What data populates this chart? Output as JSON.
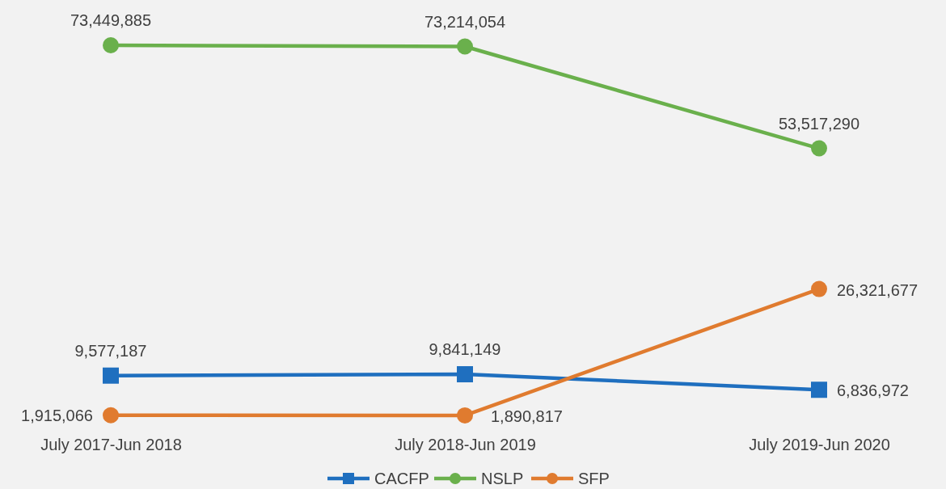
{
  "chart_data": {
    "type": "line",
    "categories": [
      "July 2017-Jun 2018",
      "July 2018-Jun 2019",
      "July 2019-Jun 2020"
    ],
    "series": [
      {
        "name": "CACFP",
        "color": "#1f6fbf",
        "marker": "square",
        "values": [
          9577187,
          9841149,
          6836972
        ],
        "value_labels": [
          "9,577,187",
          "9,841,149",
          "6,836,972"
        ]
      },
      {
        "name": "NSLP",
        "color": "#6ab04c",
        "marker": "circle",
        "values": [
          73449885,
          73214054,
          53517290
        ],
        "value_labels": [
          "73,449,885",
          "73,214,054",
          "53,517,290"
        ]
      },
      {
        "name": "SFP",
        "color": "#e07b2f",
        "marker": "circle",
        "values": [
          1915066,
          1890817,
          26321677
        ],
        "value_labels": [
          "1,915,066",
          "1,890,817",
          "26,321,677"
        ]
      }
    ],
    "legend": "bottom"
  }
}
